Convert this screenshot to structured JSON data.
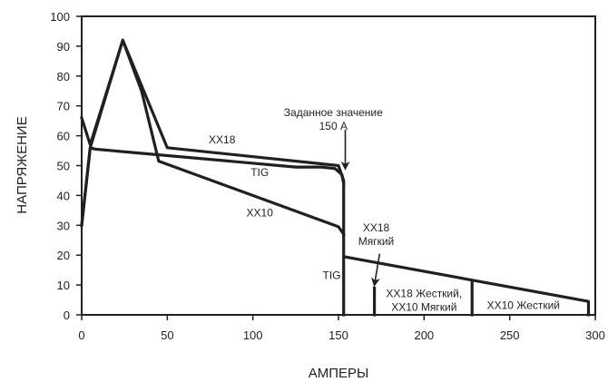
{
  "chart_data": {
    "type": "line",
    "title": "",
    "xlabel": "АМПЕРЫ",
    "ylabel": "НАПРЯЖЕНИЕ",
    "xlim": [
      0,
      300
    ],
    "ylim": [
      0,
      100
    ],
    "x_ticks": [
      0,
      50,
      100,
      150,
      200,
      250,
      300
    ],
    "y_ticks": [
      0,
      10,
      20,
      30,
      40,
      50,
      60,
      70,
      80,
      90,
      100
    ],
    "grid": false,
    "legend": "none",
    "series": [
      {
        "key": "xx18",
        "points": [
          [
            0,
            66
          ],
          [
            5,
            57
          ],
          [
            24,
            92
          ],
          [
            50,
            56
          ],
          [
            150,
            50
          ],
          [
            153,
            45
          ],
          [
            153,
            0
          ]
        ]
      },
      {
        "key": "tig",
        "points": [
          [
            0,
            30
          ],
          [
            5,
            56
          ],
          [
            8,
            55.5
          ],
          [
            125,
            49.5
          ],
          [
            140,
            49.5
          ],
          [
            148,
            49
          ],
          [
            152,
            47
          ],
          [
            153,
            44
          ]
        ]
      },
      {
        "key": "xx10",
        "points": [
          [
            0,
            30
          ],
          [
            5,
            56
          ],
          [
            24,
            92
          ],
          [
            35,
            75
          ],
          [
            45,
            51.5
          ],
          [
            150,
            29.5
          ],
          [
            153,
            27
          ]
        ]
      },
      {
        "key": "hot-start",
        "points": [
          [
            153,
            19.5
          ],
          [
            296,
            4.5
          ],
          [
            296,
            0
          ]
        ]
      },
      {
        "key": "xx18-hard",
        "points": [
          [
            171,
            9
          ],
          [
            171,
            0
          ]
        ]
      },
      {
        "key": "xx10-hard",
        "points": [
          [
            228,
            11.5
          ],
          [
            228,
            0
          ]
        ]
      }
    ],
    "annotations": [
      {
        "key": "xx18",
        "text": "XX18",
        "x": 82,
        "y": 57.5
      },
      {
        "key": "tig-upper",
        "text": "TIG",
        "x": 104,
        "y": 46.5
      },
      {
        "key": "xx10",
        "text": "XX10",
        "x": 104,
        "y": 33
      },
      {
        "key": "setpoint",
        "lines": [
          "Заданное значение",
          "150 A"
        ],
        "x": 147,
        "y": 66.5
      },
      {
        "key": "xx18-soft",
        "lines": [
          "XX18",
          "Мягкий"
        ],
        "x": 172,
        "y": 28
      },
      {
        "key": "tig-lower",
        "text": "TIG",
        "x": 146,
        "y": 12
      },
      {
        "key": "xx18-hard",
        "lines": [
          "XX18 Жесткий,",
          "XX10 Мягкий"
        ],
        "x": 200,
        "y": 6
      },
      {
        "key": "xx10-hard",
        "text": "XX10 Жесткий",
        "x": 258,
        "y": 2
      }
    ],
    "arrows": [
      {
        "key": "setpoint-arrow",
        "from": [
          154,
          62
        ],
        "to": [
          154,
          49
        ]
      },
      {
        "key": "soft-arrow",
        "from": [
          174,
          20.5
        ],
        "to": [
          171,
          10
        ]
      }
    ]
  }
}
